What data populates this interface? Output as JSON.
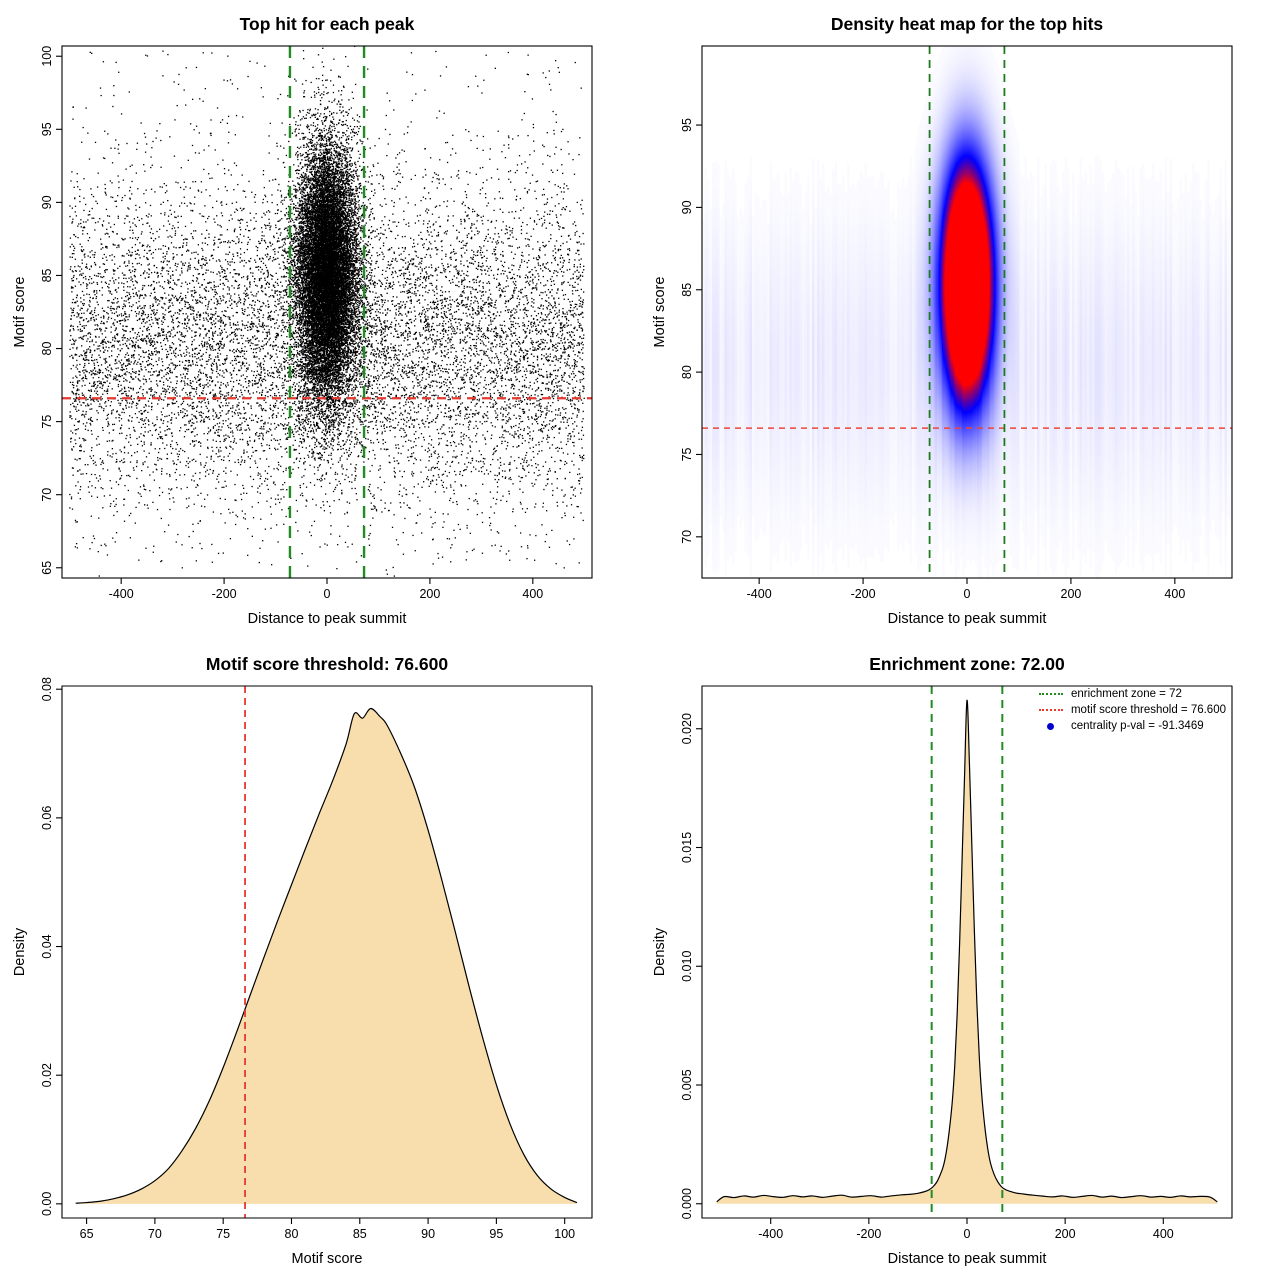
{
  "page": {
    "background": "#ffffff",
    "text_color": "#000000"
  },
  "chart_data": [
    {
      "id": "top-hits-scatter",
      "type": "scatter",
      "title": "Top hit for each peak",
      "xlabel": "Distance to peak summit",
      "ylabel": "Motif score",
      "xlim": [
        -515,
        515
      ],
      "ylim": [
        64.3,
        100.7
      ],
      "xticks": {
        "values": [
          -400,
          -200,
          0,
          200,
          400
        ],
        "labels": [
          "-400",
          "-200",
          "0",
          "200",
          "400"
        ]
      },
      "yticks": {
        "values": [
          65,
          70,
          75,
          80,
          85,
          90,
          95,
          100
        ],
        "labels": [
          "65",
          "70",
          "75",
          "80",
          "85",
          "90",
          "95",
          "100"
        ]
      },
      "grid": false,
      "point_color": "#000000",
      "points": {
        "seed": 12345,
        "components": [
          {
            "name": "background-hits",
            "n": 10500,
            "x": {
              "dist": "uniform",
              "min": -500,
              "max": 500
            },
            "y": {
              "dist": "normal",
              "mean": 80.3,
              "sd": 5.4
            }
          },
          {
            "name": "scattered-high-scores",
            "n": 700,
            "x": {
              "dist": "uniform",
              "min": -500,
              "max": 500
            },
            "y": {
              "dist": "uniform",
              "min": 65,
              "max": 100.4
            }
          },
          {
            "name": "central-cluster",
            "n": 17500,
            "x": {
              "dist": "normal",
              "mean": 0,
              "sd": 30
            },
            "y": {
              "dist": "normal",
              "mean": 85,
              "sd": 4.4
            }
          }
        ]
      },
      "lines": [
        {
          "name": "motif-score-threshold",
          "type": "h",
          "value": 76.6,
          "color": "#e8392f",
          "width": 2.2,
          "dash": [
            9,
            6
          ]
        },
        {
          "name": "enrichment-zone-left",
          "type": "v",
          "value": -72,
          "color": "#228B22",
          "width": 2.4,
          "dash": [
            12,
            8
          ]
        },
        {
          "name": "enrichment-zone-right",
          "type": "v",
          "value": 72,
          "color": "#228B22",
          "width": 2.4,
          "dash": [
            12,
            8
          ]
        }
      ]
    },
    {
      "id": "top-hits-heatmap",
      "type": "heatmap",
      "title": "Density heat map for the top hits",
      "xlabel": "Distance to peak summit",
      "ylabel": "Motif score",
      "xlim": [
        -510,
        510
      ],
      "ylim": [
        67.5,
        99.8
      ],
      "xticks": {
        "values": [
          -400,
          -200,
          0,
          200,
          400
        ],
        "labels": [
          "-400",
          "-200",
          "0",
          "200",
          "400"
        ]
      },
      "yticks": {
        "values": [
          70,
          75,
          80,
          85,
          90,
          95
        ],
        "labels": [
          "70",
          "75",
          "80",
          "85",
          "90",
          "95"
        ]
      },
      "grid": false,
      "density": {
        "seed": 77,
        "amplitude": 2.3,
        "center_x": 0,
        "sd_x": 32,
        "center_y": 85.4,
        "sd_y": 4.7,
        "background": {
          "center_y": 80.3,
          "sd_y": 6.2,
          "amplitude": 0.06
        },
        "streak_noise": 0.8
      },
      "colormap": {
        "low": "#ffffff",
        "mid": "#0000ee",
        "high": "#ee0000",
        "mid_point": 0.6
      },
      "lines": [
        {
          "name": "motif-score-threshold",
          "type": "h",
          "value": 76.6,
          "color": "#f04438",
          "width": 1.6,
          "dash": [
            6,
            5
          ]
        },
        {
          "name": "enrichment-zone-left",
          "type": "v",
          "value": -72,
          "color": "#1d7a1d",
          "width": 1.8,
          "dash": [
            8,
            6
          ]
        },
        {
          "name": "enrichment-zone-right",
          "type": "v",
          "value": 72,
          "color": "#1d7a1d",
          "width": 1.8,
          "dash": [
            8,
            6
          ]
        }
      ]
    },
    {
      "id": "motif-score-density",
      "type": "area",
      "title": "Motif score threshold: 76.600",
      "xlabel": "Motif score",
      "ylabel": "Density",
      "xlim": [
        63.2,
        102
      ],
      "ylim": [
        -0.0022,
        0.0805
      ],
      "xticks": {
        "values": [
          65,
          70,
          75,
          80,
          85,
          90,
          95,
          100
        ],
        "labels": [
          "65",
          "70",
          "75",
          "80",
          "85",
          "90",
          "95",
          "100"
        ]
      },
      "yticks": {
        "values": [
          0,
          0.02,
          0.04,
          0.06,
          0.08
        ],
        "labels": [
          "0.00",
          "0.02",
          "0.04",
          "0.06",
          "0.08"
        ]
      },
      "grid": false,
      "fill_color": "#f7deac",
      "line_color": "#000000",
      "curve": {
        "x": [
          64.2,
          65,
          66,
          67,
          68,
          69,
          70,
          71,
          72,
          73,
          74,
          75,
          76,
          77,
          78,
          79,
          80,
          81,
          82,
          83,
          84,
          84.6,
          85.2,
          85.8,
          86.5,
          87,
          88,
          89,
          90,
          91,
          92,
          93,
          94,
          95,
          96,
          97,
          98,
          99,
          100,
          100.9
        ],
        "y": [
          0.0001,
          0.0002,
          0.0004,
          0.0008,
          0.0014,
          0.0023,
          0.0036,
          0.0055,
          0.0083,
          0.0118,
          0.0161,
          0.0212,
          0.0268,
          0.0326,
          0.0384,
          0.0441,
          0.0496,
          0.0551,
          0.0605,
          0.0657,
          0.0715,
          0.0762,
          0.0755,
          0.077,
          0.0757,
          0.0744,
          0.07,
          0.0648,
          0.0581,
          0.0504,
          0.0422,
          0.0338,
          0.0258,
          0.0185,
          0.0124,
          0.0077,
          0.0044,
          0.0023,
          0.001,
          0.0002
        ]
      },
      "lines": [
        {
          "name": "motif-score-threshold",
          "type": "v",
          "value": 76.6,
          "color": "#e8392f",
          "width": 1.8,
          "dash": [
            7,
            5
          ]
        }
      ]
    },
    {
      "id": "distance-density",
      "type": "area",
      "title": "Enrichment zone: 72.00",
      "xlabel": "Distance to peak summit",
      "ylabel": "Density",
      "xlim": [
        -540,
        540
      ],
      "ylim": [
        -0.0006,
        0.0218
      ],
      "xticks": {
        "values": [
          -400,
          -200,
          0,
          200,
          400
        ],
        "labels": [
          "-400",
          "-200",
          "0",
          "200",
          "400"
        ]
      },
      "yticks": {
        "values": [
          0,
          0.005,
          0.01,
          0.015,
          0.02
        ],
        "labels": [
          "0.000",
          "0.005",
          "0.010",
          "0.015",
          "0.020"
        ]
      },
      "grid": false,
      "fill_color": "#f7deac",
      "line_color": "#000000",
      "curve": {
        "x": [
          -510,
          -495,
          -475,
          -455,
          -435,
          -415,
          -395,
          -375,
          -355,
          -335,
          -315,
          -295,
          -275,
          -255,
          -235,
          -215,
          -195,
          -175,
          -155,
          -135,
          -115,
          -100,
          -88,
          -78,
          -70,
          -62,
          -55,
          -48,
          -42,
          -36,
          -30,
          -25,
          -20,
          -15,
          -10,
          -5,
          0,
          5,
          10,
          15,
          20,
          25,
          30,
          36,
          42,
          48,
          55,
          62,
          70,
          78,
          88,
          100,
          115,
          135,
          155,
          175,
          195,
          215,
          235,
          255,
          275,
          295,
          315,
          335,
          355,
          375,
          395,
          415,
          435,
          455,
          475,
          495,
          510
        ],
        "y": [
          8e-05,
          0.0003,
          0.00026,
          0.00033,
          0.00028,
          0.00035,
          0.0003,
          0.00027,
          0.00034,
          0.00029,
          0.00033,
          0.00027,
          0.00032,
          0.00036,
          0.00028,
          0.00031,
          0.00034,
          0.00028,
          0.00033,
          0.00037,
          0.0004,
          0.00044,
          0.0005,
          0.00058,
          0.0007,
          0.0009,
          0.0012,
          0.0016,
          0.0022,
          0.0031,
          0.0043,
          0.0058,
          0.008,
          0.011,
          0.0145,
          0.018,
          0.0212,
          0.0185,
          0.015,
          0.0115,
          0.0085,
          0.0062,
          0.0046,
          0.0033,
          0.00235,
          0.0017,
          0.00125,
          0.00095,
          0.00072,
          0.0006,
          0.00052,
          0.00045,
          0.00041,
          0.00036,
          0.00032,
          0.00029,
          0.00033,
          0.00027,
          0.00031,
          0.00035,
          0.00028,
          0.00032,
          0.00026,
          0.0003,
          0.00034,
          0.00028,
          0.00031,
          0.00027,
          0.00033,
          0.00029,
          0.00031,
          0.00028,
          8e-05
        ]
      },
      "lines": [
        {
          "name": "enrichment-zone-left",
          "type": "v",
          "value": -72,
          "color": "#228B22",
          "width": 2.0,
          "dash": [
            8,
            6
          ]
        },
        {
          "name": "enrichment-zone-right",
          "type": "v",
          "value": 72,
          "color": "#228B22",
          "width": 2.0,
          "dash": [
            8,
            6
          ]
        }
      ],
      "legend": {
        "items": [
          {
            "swatch": "dotted-line",
            "color": "#228B22",
            "label": "enrichment zone = 72"
          },
          {
            "swatch": "dotted-line",
            "color": "#e8392f",
            "label": "motif score threshold = 76.600"
          },
          {
            "swatch": "point",
            "color": "#0000cd",
            "label": "centrality p-val = -91.3469"
          }
        ]
      }
    }
  ]
}
